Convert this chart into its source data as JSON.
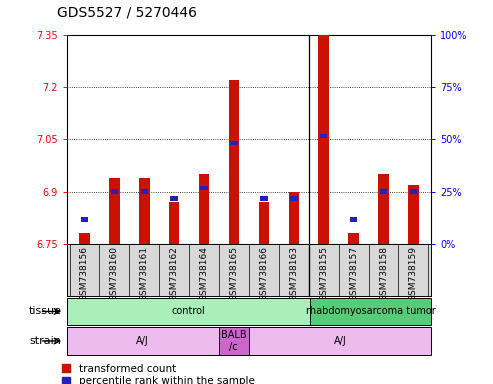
{
  "title": "GDS5527 / 5270446",
  "samples": [
    "GSM738156",
    "GSM738160",
    "GSM738161",
    "GSM738162",
    "GSM738164",
    "GSM738165",
    "GSM738166",
    "GSM738163",
    "GSM738155",
    "GSM738157",
    "GSM738158",
    "GSM738159"
  ],
  "red_values": [
    6.78,
    6.94,
    6.94,
    6.87,
    6.95,
    7.22,
    6.87,
    6.9,
    7.35,
    6.78,
    6.95,
    6.92
  ],
  "blue_values": [
    6.82,
    6.9,
    6.9,
    6.88,
    6.91,
    7.04,
    6.88,
    6.88,
    7.06,
    6.82,
    6.9,
    6.9
  ],
  "ymin": 6.75,
  "ymax": 7.35,
  "y2min": 0,
  "y2max": 100,
  "yticks": [
    6.75,
    6.9,
    7.05,
    7.2,
    7.35
  ],
  "y2ticks": [
    0,
    25,
    50,
    75,
    100
  ],
  "y2ticklabels": [
    "0%",
    "25%",
    "50%",
    "75%",
    "100%"
  ],
  "bar_color": "#cc1100",
  "blue_color": "#2222bb",
  "tissue_groups": [
    {
      "label": "control",
      "start": 0,
      "end": 8,
      "color": "#aaeebb"
    },
    {
      "label": "rhabdomyosarcoma tumor",
      "start": 8,
      "end": 12,
      "color": "#55cc77"
    }
  ],
  "strain_groups": [
    {
      "label": "A/J",
      "start": 0,
      "end": 5,
      "color": "#eebbee"
    },
    {
      "label": "BALB\n/c",
      "start": 5,
      "end": 6,
      "color": "#cc66cc"
    },
    {
      "label": "A/J",
      "start": 6,
      "end": 12,
      "color": "#eebbee"
    }
  ],
  "legend_red": "transformed count",
  "legend_blue": "percentile rank within the sample",
  "title_fontsize": 10,
  "tick_fontsize": 7,
  "label_fontsize": 8,
  "bar_width": 0.35,
  "blue_bar_width": 0.25
}
